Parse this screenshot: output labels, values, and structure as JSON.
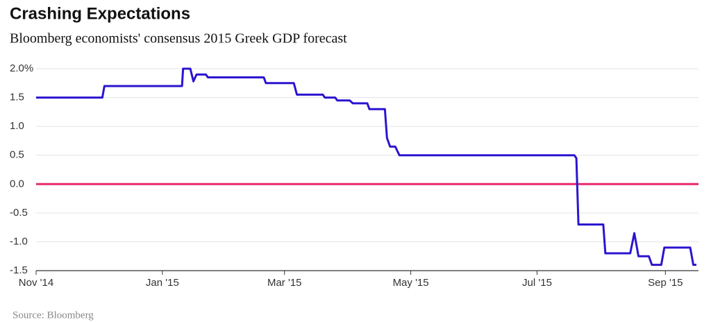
{
  "chart_data": {
    "type": "line",
    "title": "Crashing Expectations",
    "subtitle": "Bloomberg economists' consensus 2015 Greek GDP forecast",
    "source": "Source: Bloomberg",
    "x": [
      0,
      32,
      33,
      70.5,
      71,
      74.5,
      76,
      77.5,
      82,
      83,
      110,
      111,
      124.5,
      126,
      138.5,
      139.5,
      144.5,
      145.5,
      151.5,
      153,
      160,
      161,
      168.5,
      169.5,
      171,
      173.5,
      175.5,
      260,
      261,
      262,
      274,
      275,
      287,
      289,
      291,
      296,
      297.5,
      302,
      303.5,
      316,
      317.5,
      319
    ],
    "series": [
      {
        "color": "#2b14d0",
        "values": [
          1.5,
          1.5,
          1.7,
          1.7,
          2.0,
          2.0,
          1.78,
          1.9,
          1.9,
          1.85,
          1.85,
          1.75,
          1.75,
          1.55,
          1.55,
          1.5,
          1.5,
          1.45,
          1.45,
          1.4,
          1.4,
          1.3,
          1.3,
          0.8,
          0.65,
          0.65,
          0.5,
          0.5,
          0.45,
          -0.7,
          -0.7,
          -1.2,
          -1.2,
          -0.85,
          -1.25,
          -1.25,
          -1.4,
          -1.4,
          -1.1,
          -1.1,
          -1.4,
          -1.4
        ]
      }
    ],
    "xlim": [
      0,
      320
    ],
    "xticks": [
      {
        "value": 0,
        "label": "Nov '14"
      },
      {
        "value": 61,
        "label": "Jan '15"
      },
      {
        "value": 120,
        "label": "Mar '15"
      },
      {
        "value": 181,
        "label": "May '15"
      },
      {
        "value": 242,
        "label": "Jul '15"
      },
      {
        "value": 304,
        "label": "Sep '15"
      }
    ],
    "ylim": [
      -1.5,
      2.0
    ],
    "yticks": [
      {
        "value": 2,
        "label": "2.0%"
      },
      1.5,
      {
        "value": 1,
        "label": "1.0"
      },
      0.5,
      {
        "value": 0,
        "label": "0.0"
      },
      -0.5,
      {
        "value": -1,
        "label": "-1.0"
      },
      -1.5
    ],
    "grid": true,
    "reference_line": {
      "value": 0,
      "color": "#e8286e"
    }
  }
}
